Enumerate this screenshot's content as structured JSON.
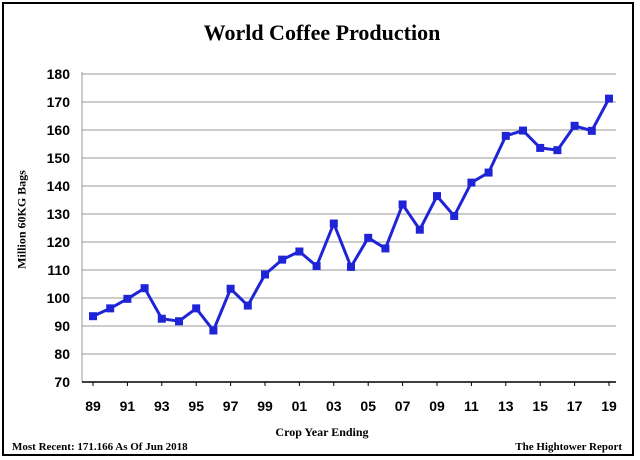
{
  "chart_data": {
    "type": "line",
    "title": "World Coffee Production",
    "xlabel": "Crop Year Ending",
    "ylabel": "Million 60KG Bags",
    "ylim": [
      70,
      180
    ],
    "yticks": [
      70,
      80,
      90,
      100,
      110,
      120,
      130,
      140,
      150,
      160,
      170,
      180
    ],
    "x": [
      "89",
      "90",
      "91",
      "92",
      "93",
      "94",
      "95",
      "96",
      "97",
      "98",
      "99",
      "00",
      "01",
      "02",
      "03",
      "04",
      "05",
      "06",
      "07",
      "08",
      "09",
      "10",
      "11",
      "12",
      "13",
      "14",
      "15",
      "16",
      "17",
      "18",
      "19"
    ],
    "xtick_labels": [
      "89",
      "91",
      "93",
      "95",
      "97",
      "99",
      "01",
      "03",
      "05",
      "07",
      "09",
      "11",
      "13",
      "15",
      "17",
      "19"
    ],
    "series": [
      {
        "values": [
          93.5,
          96.3,
          99.7,
          103.5,
          92.6,
          91.7,
          96.3,
          88.4,
          103.3,
          97.3,
          108.4,
          113.7,
          116.6,
          111.4,
          126.6,
          111.1,
          121.5,
          117.7,
          133.4,
          124.4,
          136.4,
          129.3,
          141.2,
          144.8,
          157.9,
          159.8,
          153.6,
          152.8,
          161.5,
          159.7,
          171.2
        ],
        "color": "#1f25d6"
      }
    ],
    "grid": true,
    "legend": "none"
  },
  "footer": {
    "most_recent": "Most Recent: 171.166 As Of Jun 2018",
    "source": "The Hightower Report"
  }
}
